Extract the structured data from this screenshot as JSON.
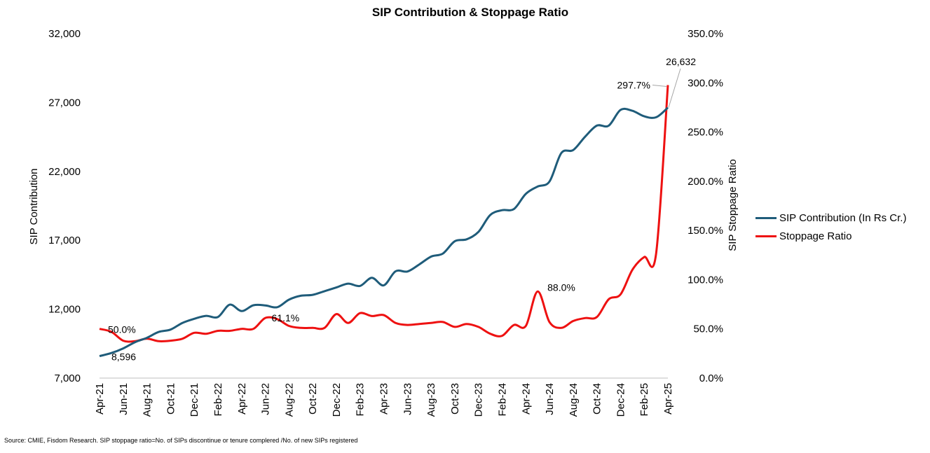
{
  "chart_data": {
    "type": "line",
    "title": "SIP Contribution & Stoppage Ratio",
    "ylabel": "SIP Contribution",
    "y2label": "SIP Stoppage Ratio",
    "ylim": [
      7000,
      32000
    ],
    "y2lim": [
      0,
      350
    ],
    "y_ticks": [
      "7,000",
      "12,000",
      "17,000",
      "22,000",
      "27,000",
      "32,000"
    ],
    "y2_ticks": [
      "0.0%",
      "50.0%",
      "100.0%",
      "150.0%",
      "200.0%",
      "250.0%",
      "300.0%",
      "350.0%"
    ],
    "x": [
      "Apr-21",
      "May-21",
      "Jun-21",
      "Jul-21",
      "Aug-21",
      "Sep-21",
      "Oct-21",
      "Nov-21",
      "Dec-21",
      "Jan-22",
      "Feb-22",
      "Mar-22",
      "Apr-22",
      "May-22",
      "Jun-22",
      "Jul-22",
      "Aug-22",
      "Sep-22",
      "Oct-22",
      "Nov-22",
      "Dec-22",
      "Jan-23",
      "Feb-23",
      "Mar-23",
      "Apr-23",
      "May-23",
      "Jun-23",
      "Jul-23",
      "Aug-23",
      "Sep-23",
      "Oct-23",
      "Nov-23",
      "Dec-23",
      "Jan-24",
      "Feb-24",
      "Mar-24",
      "Apr-24",
      "May-24",
      "Jun-24",
      "Jul-24",
      "Aug-24",
      "Sep-24",
      "Oct-24",
      "Nov-24",
      "Dec-24",
      "Jan-25",
      "Feb-25",
      "Mar-25",
      "Apr-25"
    ],
    "x_tick_labels": [
      "Apr-21",
      "Jun-21",
      "Aug-21",
      "Oct-21",
      "Dec-21",
      "Feb-22",
      "Apr-22",
      "Jun-22",
      "Aug-22",
      "Oct-22",
      "Dec-22",
      "Feb-23",
      "Apr-23",
      "Jun-23",
      "Aug-23",
      "Oct-23",
      "Dec-23",
      "Feb-24",
      "Apr-24",
      "Jun-24",
      "Aug-24",
      "Oct-24",
      "Dec-24",
      "Feb-25",
      "Apr-25"
    ],
    "legend_position": "right",
    "series": [
      {
        "name": "SIP Contribution (In Rs Cr.)",
        "axis": "left",
        "color": "#1f5c7a",
        "values": [
          8596,
          8819,
          9156,
          9609,
          9923,
          10351,
          10519,
          11005,
          11305,
          11517,
          11438,
          12328,
          11863,
          12286,
          12276,
          12140,
          12693,
          12976,
          13041,
          13306,
          13573,
          13856,
          13686,
          14276,
          13728,
          14749,
          14734,
          15245,
          15814,
          16042,
          16928,
          17073,
          17610,
          18838,
          19187,
          19270,
          20371,
          20904,
          21262,
          23332,
          23547,
          24509,
          25323,
          25320,
          26459,
          26400,
          25999,
          25926,
          26632
        ]
      },
      {
        "name": "Stoppage Ratio",
        "axis": "right",
        "color": "#ee1111",
        "values": [
          50.0,
          47.0,
          38.0,
          37.5,
          40.0,
          37.5,
          38.0,
          40.0,
          46.0,
          45.0,
          48.0,
          48.0,
          50.0,
          50.0,
          61.1,
          60.0,
          53.0,
          51.0,
          51.0,
          51.0,
          65.0,
          56.0,
          66.0,
          63.0,
          64.0,
          56.0,
          54.0,
          55.0,
          56.0,
          57.0,
          52.0,
          55.0,
          52.0,
          45.0,
          43.0,
          54.0,
          53.0,
          88.0,
          57.0,
          51.0,
          58.0,
          61.0,
          62.0,
          80.0,
          85.0,
          110.0,
          123.0,
          126.0,
          297.7
        ]
      }
    ],
    "annotations": {
      "first_contribution": "8,596",
      "first_stoppage": "50.0%",
      "mid_stoppage_1": "61.1%",
      "mid_stoppage_2": "88.0%",
      "last_contribution": "26,632",
      "last_stoppage": "297.7%"
    },
    "source": "Source: CMIE, Fisdom Research. SIP stoppage ratio=No. of SIPs discontinue or tenure complered /No. of new SIPs registered"
  }
}
